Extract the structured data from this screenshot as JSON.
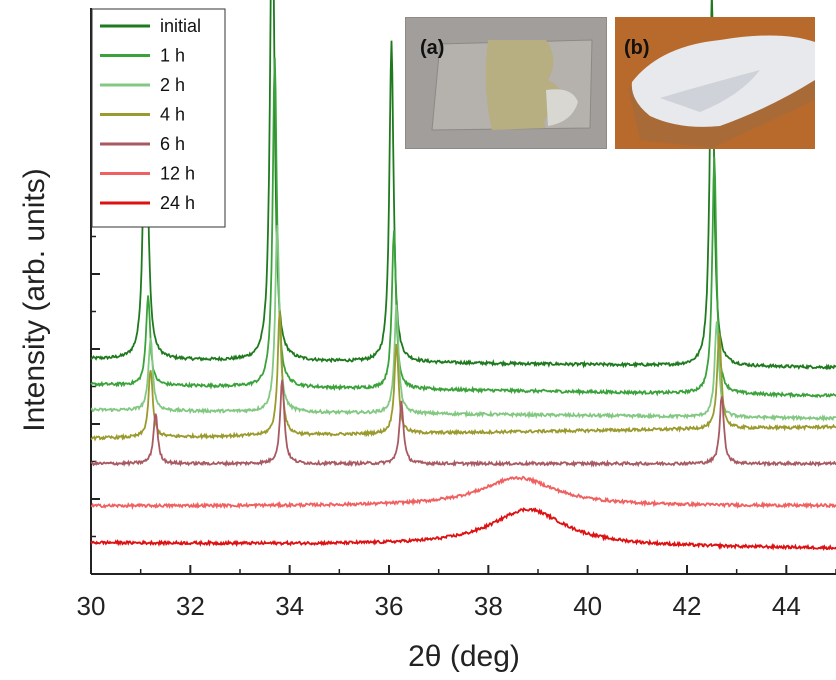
{
  "chart_data": {
    "type": "line",
    "title": "",
    "xlabel": "2θ (deg)",
    "ylabel": "Intensity (arb. units)",
    "xlim": [
      30,
      45
    ],
    "ylim": [
      0,
      10
    ],
    "x_ticks": [
      30,
      32,
      34,
      36,
      38,
      40,
      42,
      44
    ],
    "x_tick_labels": [
      "30",
      "32",
      "34",
      "36",
      "38",
      "40",
      "42",
      "44"
    ],
    "grid": false,
    "legend_position": "top-left",
    "peak_positions": [
      31.1,
      33.65,
      36.05,
      42.5
    ],
    "series": [
      {
        "name": "initial",
        "color": "#1f7a1f",
        "baseline": 3.8,
        "end_baseline": 3.65,
        "peaks": [
          [
            31.1,
            6.0
          ],
          [
            33.65,
            9.0
          ],
          [
            36.05,
            5.7
          ],
          [
            42.5,
            6.6
          ]
        ]
      },
      {
        "name": "1 h",
        "color": "#3aa23a",
        "baseline": 3.35,
        "end_baseline": 3.15,
        "peaks": [
          [
            31.15,
            1.6
          ],
          [
            33.7,
            5.8
          ],
          [
            36.1,
            2.8
          ],
          [
            42.55,
            4.2
          ]
        ]
      },
      {
        "name": "2 h",
        "color": "#82c882",
        "baseline": 2.9,
        "end_baseline": 2.75,
        "peaks": [
          [
            31.2,
            1.3
          ],
          [
            33.75,
            3.3
          ],
          [
            36.15,
            1.9
          ],
          [
            42.6,
            1.7
          ]
        ]
      },
      {
        "name": "4 h",
        "color": "#9a9a2e",
        "baseline": 2.4,
        "end_baseline": 2.6,
        "peaks": [
          [
            31.2,
            1.2
          ],
          [
            33.8,
            2.2
          ],
          [
            36.15,
            1.6
          ],
          [
            42.65,
            1.7
          ]
        ]
      },
      {
        "name": "6 h",
        "color": "#a85a62",
        "baseline": 1.95,
        "end_baseline": 1.95,
        "peaks": [
          [
            31.3,
            0.9
          ],
          [
            33.85,
            1.5
          ],
          [
            36.25,
            1.1
          ],
          [
            42.7,
            1.2
          ]
        ]
      },
      {
        "name": "12 h",
        "color": "#f06060",
        "baseline": 1.2,
        "end_baseline": 1.2,
        "peaks": [
          [
            38.6,
            0.5
          ]
        ]
      },
      {
        "name": "24 h",
        "color": "#dd1111",
        "baseline": 0.55,
        "end_baseline": 0.45,
        "peaks": [
          [
            38.8,
            0.65
          ]
        ]
      }
    ],
    "annotations": [
      "(a)",
      "(b)"
    ]
  }
}
